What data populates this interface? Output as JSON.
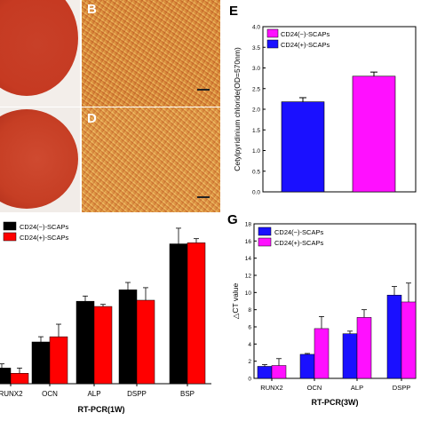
{
  "panels": {
    "B": "B",
    "D": "D",
    "E": "E",
    "G": "G"
  },
  "colors": {
    "black_series": "#000000",
    "red_series": "#ff0000",
    "blue_series": "#1a10ff",
    "magenta_series": "#ff10ff",
    "stain": "#c8391f"
  },
  "chart_data": [
    {
      "panel": "E",
      "type": "bar",
      "title": "",
      "xlabel": "",
      "ylabel": "Cetylpyridinium chloride(OD=570nm)",
      "ylim": [
        0,
        4.0
      ],
      "yticks": [
        "0.0",
        "0.5",
        "1.0",
        "1.5",
        "2.0",
        "2.5",
        "3.0",
        "3.5",
        "4.0"
      ],
      "legend": [
        {
          "name": "CD24(−)-SCAPs",
          "color": "#ff10ff"
        },
        {
          "name": "CD24(+)-SCAPs",
          "color": "#1a10ff"
        }
      ],
      "bars": [
        {
          "value": 2.18,
          "error": 0.1,
          "color": "#1a10ff"
        },
        {
          "value": 2.8,
          "error": 0.1,
          "color": "#ff10ff"
        }
      ]
    },
    {
      "panel": "F",
      "type": "bar",
      "title": "",
      "xlabel": "RT-PCR(1W)",
      "ylabel": "",
      "categories": [
        "RUNX2",
        "OCN",
        "ALP",
        "DSPP",
        "BSP"
      ],
      "legend_placement": "top-left",
      "series": [
        {
          "name": "CD24(−)-SCAPs",
          "color": "#000000",
          "values": [
            1.5,
            4.0,
            7.9,
            9.0,
            13.4
          ],
          "errors": [
            0.4,
            0.5,
            0.5,
            0.7,
            1.5
          ]
        },
        {
          "name": "CD24(+)-SCAPs",
          "color": "#ff0000",
          "values": [
            1.0,
            4.5,
            7.4,
            8.0,
            13.5
          ],
          "errors": [
            0.5,
            1.2,
            0.2,
            1.2,
            0.4
          ]
        }
      ],
      "ylim": [
        0,
        16
      ]
    },
    {
      "panel": "G",
      "type": "bar",
      "title": "",
      "xlabel": "RT-PCR(3W)",
      "ylabel": "△CT value",
      "categories": [
        "RUNX2",
        "OCN",
        "ALP",
        "DSPP"
      ],
      "ylim": [
        0,
        18
      ],
      "yticks": [
        "0",
        "2",
        "4",
        "6",
        "8",
        "10",
        "12",
        "14",
        "16",
        "18"
      ],
      "legend_placement": "top-left",
      "series": [
        {
          "name": "CD24(−)-SCAPs",
          "color": "#1a10ff",
          "values": [
            1.4,
            2.8,
            5.2,
            9.7
          ],
          "errors": [
            0.2,
            0.1,
            0.3,
            1.0
          ]
        },
        {
          "name": "CD24(+)-SCAPs",
          "color": "#ff10ff",
          "values": [
            1.5,
            5.8,
            7.1,
            8.9
          ],
          "errors": [
            0.8,
            1.4,
            0.9,
            2.2
          ]
        }
      ]
    }
  ]
}
